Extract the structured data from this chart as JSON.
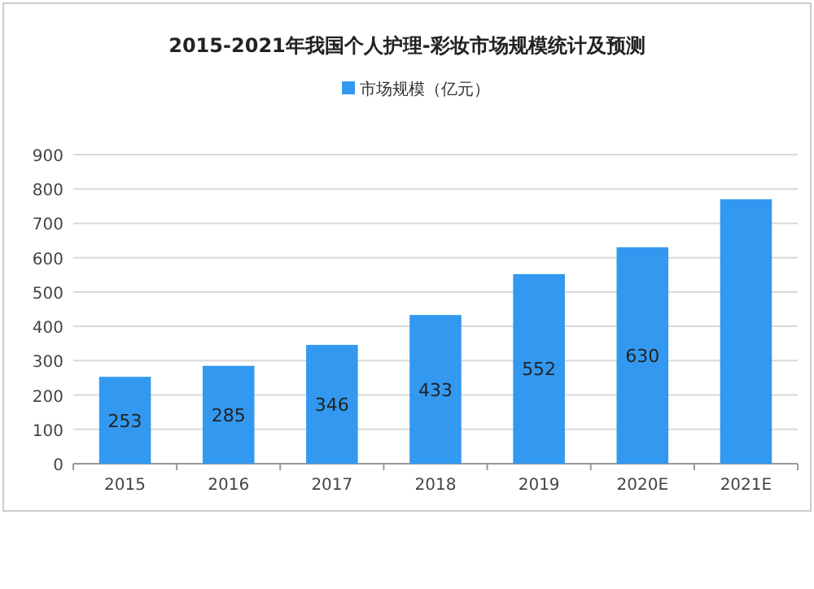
{
  "chart_data": {
    "type": "bar",
    "title": "2015-2021年我国个人护理-彩妆市场规模统计及预测",
    "categories": [
      "2015",
      "2016",
      "2017",
      "2018",
      "2019",
      "2020E",
      "2021E"
    ],
    "series": [
      {
        "name": "市场规模（亿元）",
        "color": "#3399f0",
        "values": [
          253,
          285,
          346,
          433,
          552,
          630,
          770
        ],
        "value_labels": [
          "253",
          "285",
          "346",
          "433",
          "552",
          "630",
          null
        ]
      }
    ],
    "ylim": [
      0,
      900
    ],
    "yticks": [
      0,
      100,
      200,
      300,
      400,
      500,
      600,
      700,
      800,
      900
    ],
    "grid": "y",
    "legend": "top"
  }
}
